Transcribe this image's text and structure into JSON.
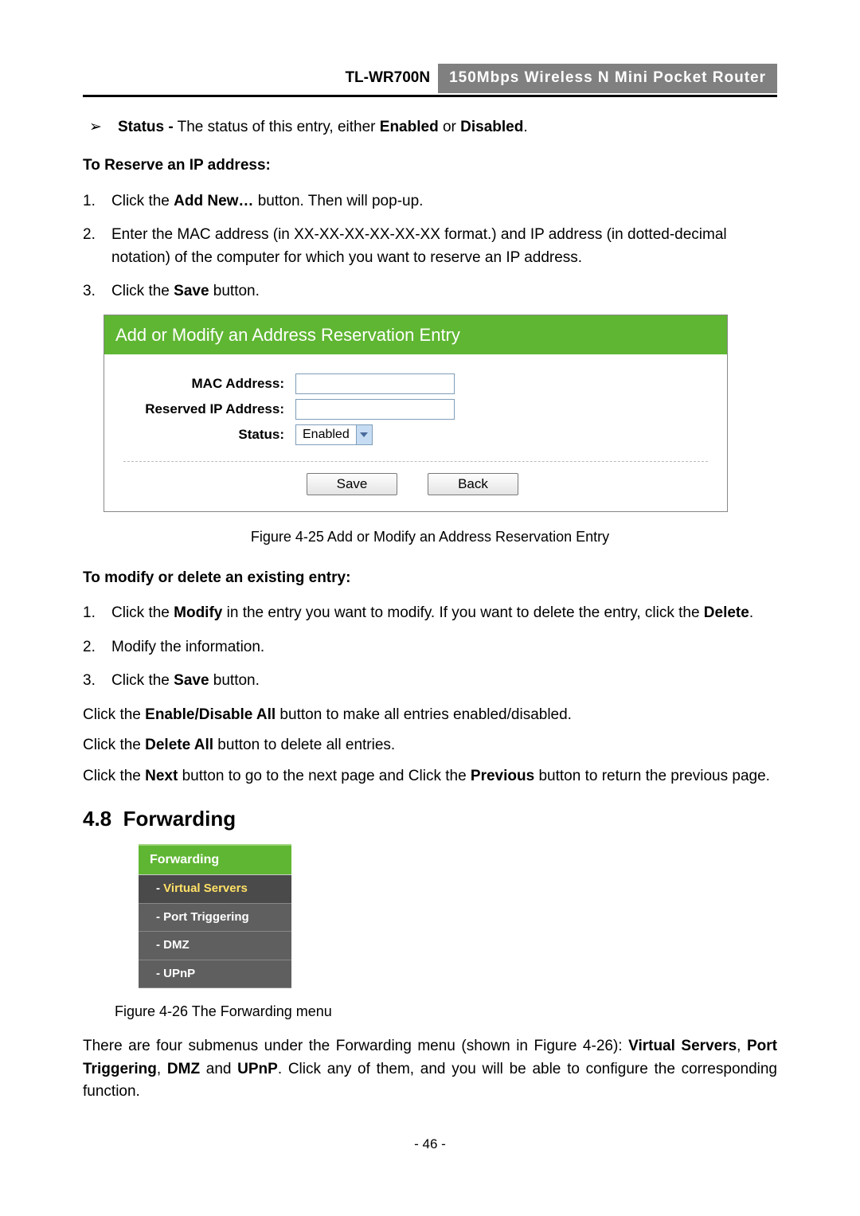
{
  "header": {
    "model": "TL-WR700N",
    "desc": "150Mbps Wireless N Mini Pocket Router"
  },
  "status_line": {
    "bold1": "Status -",
    "text": " The status of this entry, either ",
    "bold2": "Enabled",
    "text2": " or ",
    "bold3": "Disabled",
    "text3": "."
  },
  "reserve_title": "To Reserve an IP address:",
  "reserve_steps": {
    "s1": {
      "n": "1.",
      "pre": "Click the ",
      "bold": "Add New…",
      "post": " button. Then will pop-up."
    },
    "s2": {
      "n": "2.",
      "text": "Enter the MAC address (in XX-XX-XX-XX-XX-XX format.) and IP address (in dotted-decimal notation) of the computer for which you want to reserve an IP address."
    },
    "s3": {
      "n": "3.",
      "pre": "Click the ",
      "bold": "Save",
      "post": " button."
    }
  },
  "fig25": {
    "title": "Add or Modify an Address Reservation Entry",
    "labels": {
      "mac": "MAC Address:",
      "ip": "Reserved IP Address:",
      "status": "Status:"
    },
    "status_value": "Enabled",
    "btn_save": "Save",
    "btn_back": "Back",
    "caption": "Figure 4-25 Add or Modify an Address Reservation Entry"
  },
  "modify_title": "To modify or delete an existing entry:",
  "modify_steps": {
    "s1": {
      "n": "1.",
      "pre": "Click the ",
      "bold1": "Modify",
      "mid": " in the entry you want to modify. If you want to delete the entry, click the ",
      "bold2": "Delete",
      "post": "."
    },
    "s2": {
      "n": "2.",
      "text": "Modify the information."
    },
    "s3": {
      "n": "3.",
      "pre": "Click the ",
      "bold": "Save",
      "post": " button."
    }
  },
  "paras": {
    "p1": {
      "pre": "Click the ",
      "bold": "Enable/Disable All",
      "post": " button to make all entries enabled/disabled."
    },
    "p2": {
      "pre": "Click the ",
      "bold": "Delete All",
      "post": " button to delete all entries."
    },
    "p3": {
      "pre": "Click the ",
      "bold1": "Next",
      "mid": " button to go to the next page and Click the ",
      "bold2": "Previous",
      "post": " button to return the previous page."
    }
  },
  "sec": {
    "num": "4.8",
    "title": "Forwarding"
  },
  "menu": {
    "head": "Forwarding",
    "items": [
      {
        "label": "Virtual Servers",
        "active": true
      },
      {
        "label": "Port Triggering",
        "active": false
      },
      {
        "label": "DMZ",
        "active": false
      },
      {
        "label": "UPnP",
        "active": false
      }
    ]
  },
  "fig26_caption": "Figure 4-26 The Forwarding menu",
  "final_para": {
    "pre": "There are four submenus under the Forwarding menu (shown in Figure 4-26): ",
    "b1": "Virtual Servers",
    "c1": ", ",
    "b2": "Port Triggering",
    "c2": ", ",
    "b3": "DMZ",
    "c3": " and ",
    "b4": "UPnP",
    "post": ". Click any of them, and you will be able to configure the corresponding function."
  },
  "page_num": "- 46 -",
  "colors": {
    "green": "#5fb632",
    "header_gray": "#808080",
    "menu_item_bg": "#5f5f5f",
    "menu_active_text": "#ffe066"
  }
}
